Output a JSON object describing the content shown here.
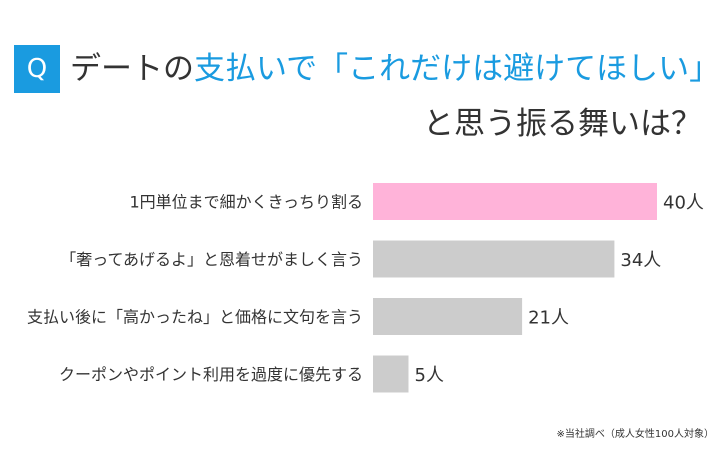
{
  "question": {
    "q_label": "Q",
    "line1_part1": "デートの",
    "line1_part2": "支払いで",
    "line1_part3": "「これだけは避けてほしい」",
    "line2": "と思う振る舞いは？"
  },
  "chart_data": {
    "type": "bar",
    "orientation": "horizontal",
    "categories": [
      "1円単位まで細かくきっちり割る",
      "「奢ってあげるよ」と恩着せがましく言う",
      "支払い後に「高かったね」と価格に文句を言う",
      "クーポンやポイント利用を過度に優先する"
    ],
    "values": [
      40,
      34,
      21,
      5
    ],
    "value_labels": [
      "40人",
      "34人",
      "21人",
      "5人"
    ],
    "unit": "人",
    "xlim": [
      0,
      40
    ],
    "highlight_color": "#ffb3d9",
    "bar_color": "#cccccc",
    "grid": false
  },
  "footnote": "※当社調べ（成人女性100人対象）",
  "colors": {
    "accent": "#1a9be0",
    "text": "#333333"
  }
}
